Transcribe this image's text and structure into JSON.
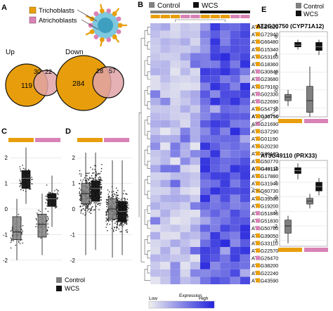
{
  "colors": {
    "trichoblast": "#E89E0C",
    "atrichoblast": "#D982B6",
    "control": "#808080",
    "wcs": "#111111",
    "low": "#f0f0f0",
    "high": "#2222dd"
  },
  "panelA": {
    "letter": "A",
    "legend": [
      "Trichoblasts",
      "Atrichoblasts"
    ],
    "up": {
      "title": "Up",
      "left": "119",
      "overlap": "30",
      "right": "22"
    },
    "down": {
      "title": "Down",
      "left": "284",
      "overlap": "28",
      "right": "57"
    }
  },
  "panelB": {
    "letter": "B",
    "legend_control": "Control",
    "legend_wcs": "WCS",
    "genes": [
      {
        "id": "AT1G27020",
        "cell": "t",
        "bold": false
      },
      {
        "id": "AT1G72940",
        "cell": "t",
        "bold": false
      },
      {
        "id": "AT5G66480",
        "cell": "t",
        "bold": false
      },
      {
        "id": "AT5G15340",
        "cell": "t",
        "bold": false
      },
      {
        "id": "AT3G53160",
        "cell": "t",
        "bold": false
      },
      {
        "id": "AT4G18360",
        "cell": "t",
        "bold": false
      },
      {
        "id": "AT2G30840",
        "cell": "a",
        "bold": false
      },
      {
        "id": "AT4G23680",
        "cell": "a",
        "bold": false
      },
      {
        "id": "AT1G79160",
        "cell": "t",
        "bold": false
      },
      {
        "id": "AT4G02330",
        "cell": "a",
        "bold": false
      },
      {
        "id": "AT4G22690",
        "cell": "a",
        "bold": false
      },
      {
        "id": "AT5G54710",
        "cell": "t",
        "bold": false
      },
      {
        "id": "AT2G30750",
        "cell": "t",
        "bold": true
      },
      {
        "id": "AT3G21690",
        "cell": "a",
        "bold": false
      },
      {
        "id": "AT4G37290",
        "cell": "t",
        "bold": false
      },
      {
        "id": "AT3G01190",
        "cell": "t",
        "bold": false
      },
      {
        "id": "AT5G20230",
        "cell": "t",
        "bold": false
      },
      {
        "id": "AT4G26120",
        "cell": "t",
        "bold": false
      },
      {
        "id": "AT3G50770",
        "cell": "t",
        "bold": false
      },
      {
        "id": "AT3G49110",
        "cell": "t",
        "bold": true
      },
      {
        "id": "AT5G17880",
        "cell": "t",
        "bold": false
      },
      {
        "id": "AT1G31940",
        "cell": "t",
        "bold": false
      },
      {
        "id": "AT1G60730",
        "cell": "t",
        "bold": false
      },
      {
        "id": "AT5G39580",
        "cell": "t",
        "bold": false
      },
      {
        "id": "AT3G19200",
        "cell": "t",
        "bold": false
      },
      {
        "id": "AT1G51840",
        "cell": "a",
        "bold": false
      },
      {
        "id": "AT1G51830",
        "cell": "a",
        "bold": false
      },
      {
        "id": "AT5G50760",
        "cell": "a",
        "bold": false
      },
      {
        "id": "AT5G39050",
        "cell": "t",
        "bold": false
      },
      {
        "id": "AT1G33110",
        "cell": "t",
        "bold": false
      },
      {
        "id": "AT5G22570",
        "cell": "t",
        "bold": false
      },
      {
        "id": "AT3G26470",
        "cell": "a",
        "bold": false
      },
      {
        "id": "AT5G38200",
        "cell": "t",
        "bold": false
      },
      {
        "id": "AT3G22240",
        "cell": "t",
        "bold": false
      },
      {
        "id": "AT2G43590",
        "cell": "t",
        "bold": false
      }
    ],
    "col_cells": [
      "t",
      "t",
      "t",
      "a",
      "a",
      "t",
      "t",
      "t",
      "a",
      "a"
    ],
    "expression_label": "Expression",
    "low_label": "Low",
    "high_label": "High"
  },
  "panelC": {
    "letter": "C",
    "yticks": [
      "2",
      "1",
      "0",
      "-1",
      "-2"
    ]
  },
  "panelD": {
    "letter": "D",
    "yticks": [
      "2",
      "1",
      "0",
      "-1",
      "-2"
    ]
  },
  "bottom_legend": [
    "Control",
    "WCS"
  ],
  "panelE": {
    "letter": "E",
    "legend": [
      "Control",
      "WCS"
    ],
    "plot1": {
      "title": "AT2G30750 (CYP71A12)",
      "yticks": [
        "6",
        "4",
        "2",
        "0",
        "-2"
      ]
    },
    "plot2": {
      "title": "AT3G49110 (PRX33)",
      "yticks": [
        "2",
        "1",
        "0",
        "-1",
        "-2",
        "-3"
      ]
    }
  }
}
